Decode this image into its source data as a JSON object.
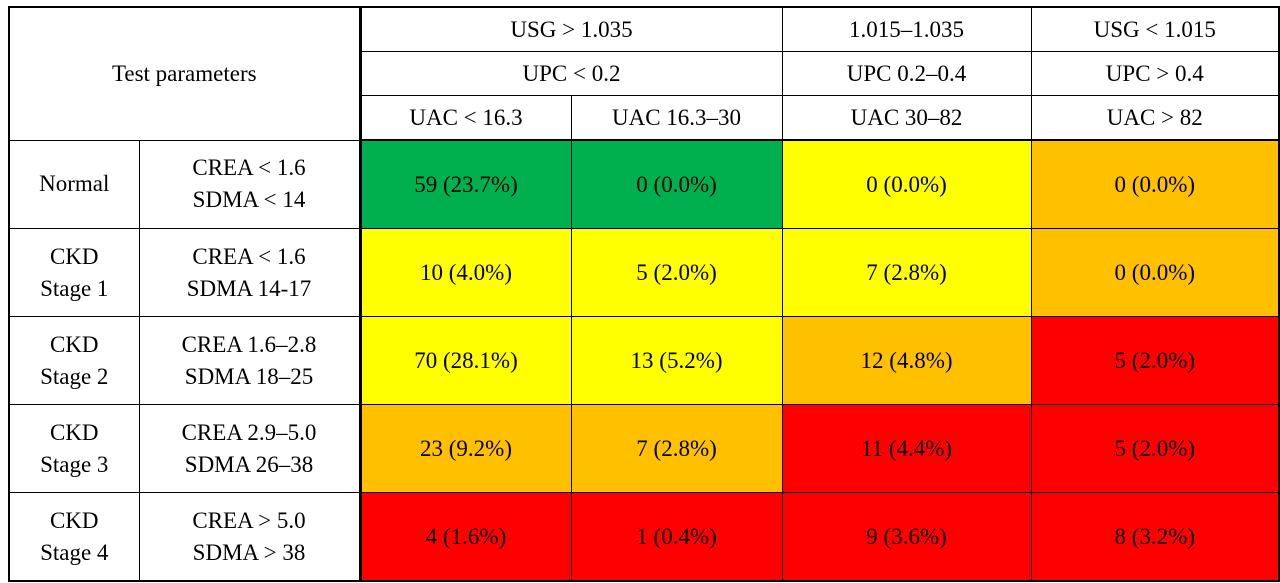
{
  "header": {
    "test_parameters": "Test parameters",
    "usg": [
      "USG > 1.035",
      "1.015–1.035",
      "USG < 1.015"
    ],
    "upc": [
      "UPC < 0.2",
      "UPC 0.2–0.4",
      "UPC > 0.4"
    ],
    "uac": [
      "UAC < 16.3",
      "UAC 16.3–30",
      "UAC 30–82",
      "UAC > 82"
    ]
  },
  "rows": [
    {
      "stage": [
        "Normal"
      ],
      "params": [
        "CREA < 1.6",
        "SDMA < 14"
      ],
      "cells": [
        {
          "text": "59 (23.7%)",
          "color": "#00b04f"
        },
        {
          "text": "0 (0.0%)",
          "color": "#00b04f"
        },
        {
          "text": "0 (0.0%)",
          "color": "#ffff00"
        },
        {
          "text": "0 (0.0%)",
          "color": "#ffc000"
        }
      ]
    },
    {
      "stage": [
        "CKD",
        "Stage 1"
      ],
      "params": [
        "CREA < 1.6",
        "SDMA 14-17"
      ],
      "cells": [
        {
          "text": "10 (4.0%)",
          "color": "#ffff00"
        },
        {
          "text": "5 (2.0%)",
          "color": "#ffff00"
        },
        {
          "text": "7 (2.8%)",
          "color": "#ffff00"
        },
        {
          "text": "0 (0.0%)",
          "color": "#ffc000"
        }
      ]
    },
    {
      "stage": [
        "CKD",
        "Stage 2"
      ],
      "params": [
        "CREA 1.6–2.8",
        "SDMA 18–25"
      ],
      "cells": [
        {
          "text": "70 (28.1%)",
          "color": "#ffff00"
        },
        {
          "text": "13 (5.2%)",
          "color": "#ffff00"
        },
        {
          "text": "12 (4.8%)",
          "color": "#ffc000"
        },
        {
          "text": "5 (2.0%)",
          "color": "#ff0000"
        }
      ]
    },
    {
      "stage": [
        "CKD",
        "Stage 3"
      ],
      "params": [
        "CREA 2.9–5.0",
        "SDMA 26–38"
      ],
      "cells": [
        {
          "text": "23 (9.2%)",
          "color": "#ffc000"
        },
        {
          "text": "7 (2.8%)",
          "color": "#ffc000"
        },
        {
          "text": "11 (4.4%)",
          "color": "#ff0000"
        },
        {
          "text": "5 (2.0%)",
          "color": "#ff0000"
        }
      ]
    },
    {
      "stage": [
        "CKD",
        "Stage 4"
      ],
      "params": [
        "CREA > 5.0",
        "SDMA > 38"
      ],
      "cells": [
        {
          "text": "4 (1.6%)",
          "color": "#ff0000"
        },
        {
          "text": "1 (0.4%)",
          "color": "#ff0000"
        },
        {
          "text": "9 (3.6%)",
          "color": "#ff0000"
        },
        {
          "text": "8 (3.2%)",
          "color": "#ff0000"
        }
      ]
    }
  ]
}
